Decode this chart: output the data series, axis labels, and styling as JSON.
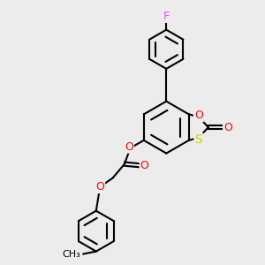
{
  "bg_color": "#ececec",
  "bond_color": "#000000",
  "bond_width": 1.5,
  "atom_colors": {
    "O": "#ff0000",
    "S": "#cccc00",
    "F": "#ff44ff",
    "C": "#000000"
  },
  "font_size": 9
}
